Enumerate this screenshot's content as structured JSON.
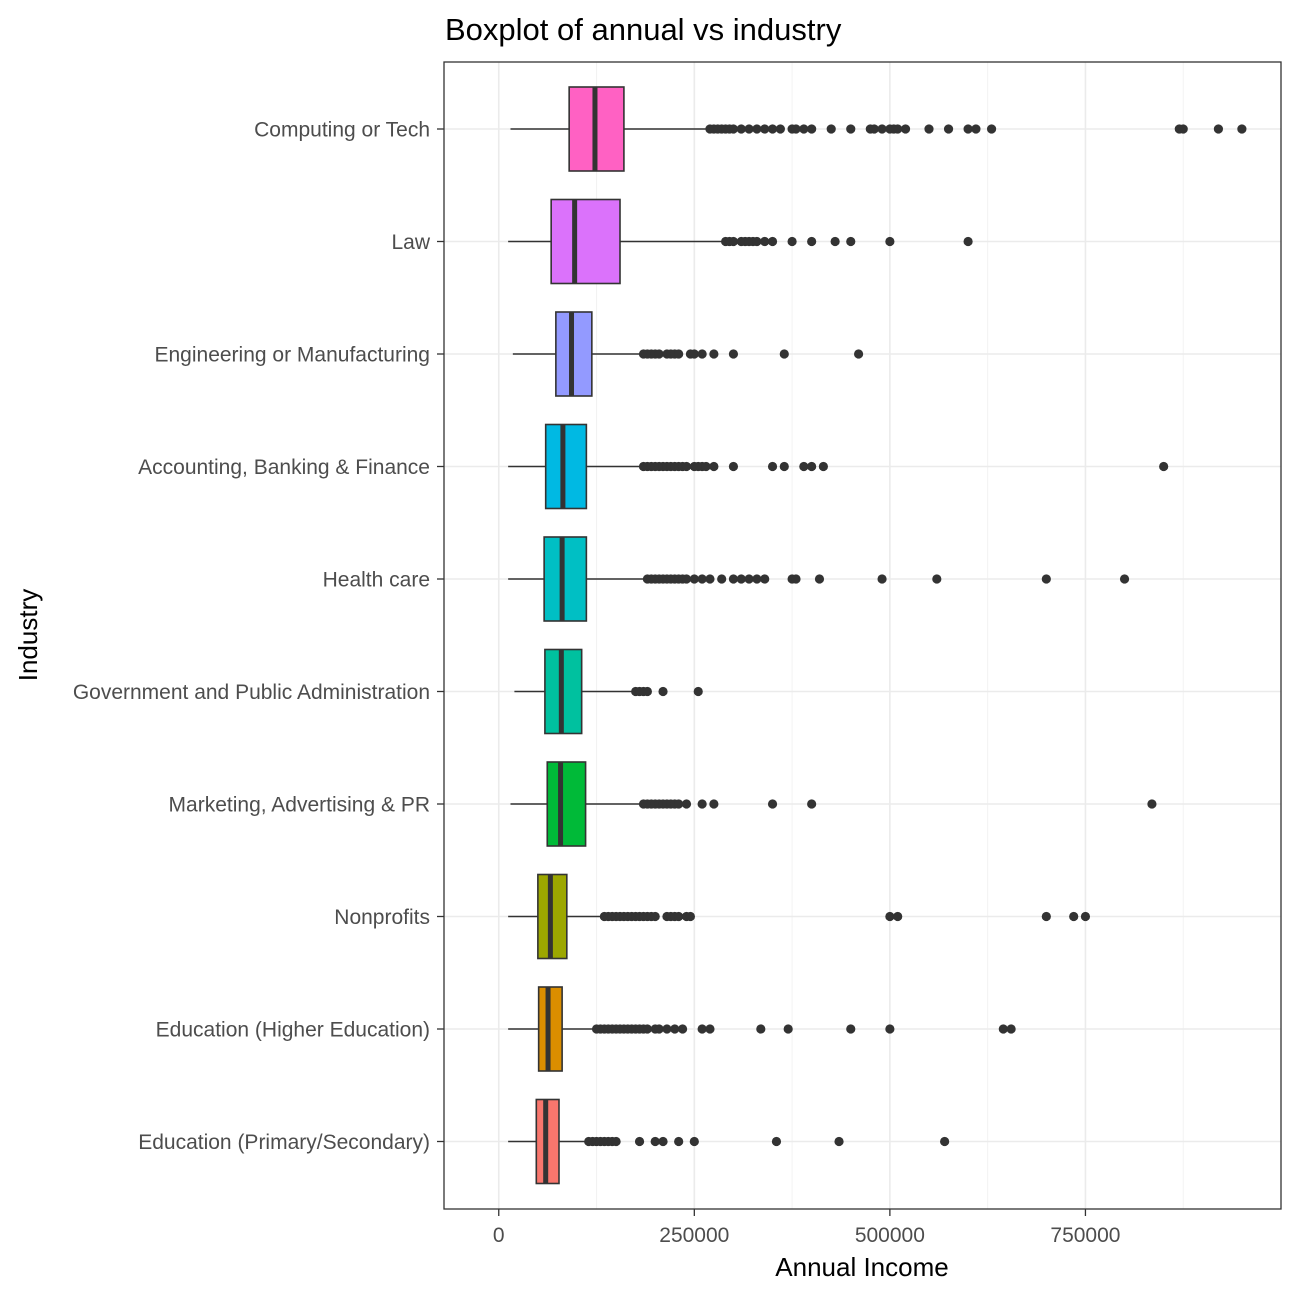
{
  "chart_data": {
    "type": "boxplot",
    "title": "Boxplot of annual vs industry",
    "xlabel": "Annual Income",
    "ylabel": "Industry",
    "xlim": [
      -70000,
      1000000
    ],
    "x_ticks": [
      0,
      250000,
      500000,
      750000
    ],
    "x_tick_labels": [
      "0",
      "250000",
      "500000",
      "750000"
    ],
    "grid": true,
    "categories": [
      "Computing or Tech",
      "Law",
      "Engineering or Manufacturing",
      "Accounting, Banking & Finance",
      "Health care",
      "Government and Public Administration",
      "Marketing, Advertising & PR",
      "Nonprofits",
      "Education (Higher Education)",
      "Education (Primary/Secondary)"
    ],
    "boxes": [
      {
        "industry": "Computing or Tech",
        "color": "#FF61C3",
        "whisker_low": 15000,
        "q1": 90000,
        "median": 123000,
        "q3": 160000,
        "whisker_high": 265000,
        "outliers": [
          270000,
          275000,
          280000,
          285000,
          290000,
          295000,
          300000,
          310000,
          320000,
          330000,
          340000,
          350000,
          360000,
          375000,
          380000,
          390000,
          400000,
          425000,
          450000,
          475000,
          480000,
          490000,
          500000,
          505000,
          510000,
          520000,
          550000,
          575000,
          600000,
          610000,
          630000,
          870000,
          875000,
          920000,
          950000
        ]
      },
      {
        "industry": "Law",
        "color": "#DB72FB",
        "whisker_low": 12000,
        "q1": 67000,
        "median": 97000,
        "q3": 155000,
        "whisker_high": 285000,
        "outliers": [
          290000,
          295000,
          300000,
          310000,
          315000,
          320000,
          325000,
          330000,
          340000,
          350000,
          375000,
          400000,
          430000,
          450000,
          500000,
          600000
        ]
      },
      {
        "industry": "Engineering or Manufacturing",
        "color": "#939AFF",
        "whisker_low": 18000,
        "q1": 73000,
        "median": 93000,
        "q3": 119000,
        "whisker_high": 185000,
        "outliers": [
          185000,
          190000,
          195000,
          200000,
          205000,
          215000,
          220000,
          225000,
          230000,
          245000,
          250000,
          260000,
          275000,
          300000,
          365000,
          460000
        ]
      },
      {
        "industry": "Accounting, Banking & Finance",
        "color": "#00B9E3",
        "whisker_low": 12000,
        "q1": 60000,
        "median": 82000,
        "q3": 112000,
        "whisker_high": 185000,
        "outliers": [
          185000,
          190000,
          195000,
          200000,
          205000,
          210000,
          215000,
          220000,
          225000,
          230000,
          235000,
          240000,
          250000,
          255000,
          260000,
          265000,
          275000,
          300000,
          350000,
          365000,
          390000,
          400000,
          415000,
          850000
        ]
      },
      {
        "industry": "Health care",
        "color": "#00BFC4",
        "whisker_low": 12000,
        "q1": 58000,
        "median": 81000,
        "q3": 112000,
        "whisker_high": 190000,
        "outliers": [
          190000,
          195000,
          200000,
          205000,
          210000,
          215000,
          220000,
          225000,
          230000,
          235000,
          240000,
          250000,
          260000,
          270000,
          285000,
          300000,
          310000,
          320000,
          330000,
          340000,
          375000,
          380000,
          410000,
          490000,
          560000,
          700000,
          800000
        ]
      },
      {
        "industry": "Government and Public Administration",
        "color": "#00C19F",
        "whisker_low": 20000,
        "q1": 59000,
        "median": 80000,
        "q3": 106000,
        "whisker_high": 170000,
        "outliers": [
          175000,
          180000,
          185000,
          190000,
          210000,
          255000
        ]
      },
      {
        "industry": "Marketing, Advertising & PR",
        "color": "#00BA38",
        "whisker_low": 15000,
        "q1": 62000,
        "median": 79000,
        "q3": 111000,
        "whisker_high": 185000,
        "outliers": [
          185000,
          190000,
          195000,
          200000,
          205000,
          210000,
          215000,
          220000,
          225000,
          230000,
          240000,
          260000,
          275000,
          350000,
          400000,
          835000
        ]
      },
      {
        "industry": "Nonprofits",
        "color": "#9CA700",
        "whisker_low": 12000,
        "q1": 50000,
        "median": 66000,
        "q3": 87000,
        "whisker_high": 135000,
        "outliers": [
          135000,
          140000,
          145000,
          150000,
          155000,
          160000,
          165000,
          170000,
          175000,
          180000,
          185000,
          190000,
          195000,
          200000,
          215000,
          220000,
          225000,
          230000,
          240000,
          245000,
          500000,
          510000,
          700000,
          735000,
          750000
        ]
      },
      {
        "industry": "Education (Higher Education)",
        "color": "#DB8E00",
        "whisker_low": 12000,
        "q1": 51000,
        "median": 63000,
        "q3": 81000,
        "whisker_high": 122000,
        "outliers": [
          125000,
          130000,
          135000,
          140000,
          145000,
          150000,
          155000,
          160000,
          165000,
          170000,
          175000,
          180000,
          185000,
          190000,
          200000,
          205000,
          215000,
          225000,
          235000,
          260000,
          270000,
          335000,
          370000,
          450000,
          500000,
          645000,
          655000
        ]
      },
      {
        "industry": "Education (Primary/Secondary)",
        "color": "#F8766D",
        "whisker_low": 12000,
        "q1": 48000,
        "median": 60000,
        "q3": 77000,
        "whisker_high": 112000,
        "outliers": [
          115000,
          120000,
          125000,
          130000,
          135000,
          140000,
          145000,
          150000,
          180000,
          200000,
          210000,
          230000,
          250000,
          355000,
          435000,
          570000
        ]
      }
    ]
  }
}
